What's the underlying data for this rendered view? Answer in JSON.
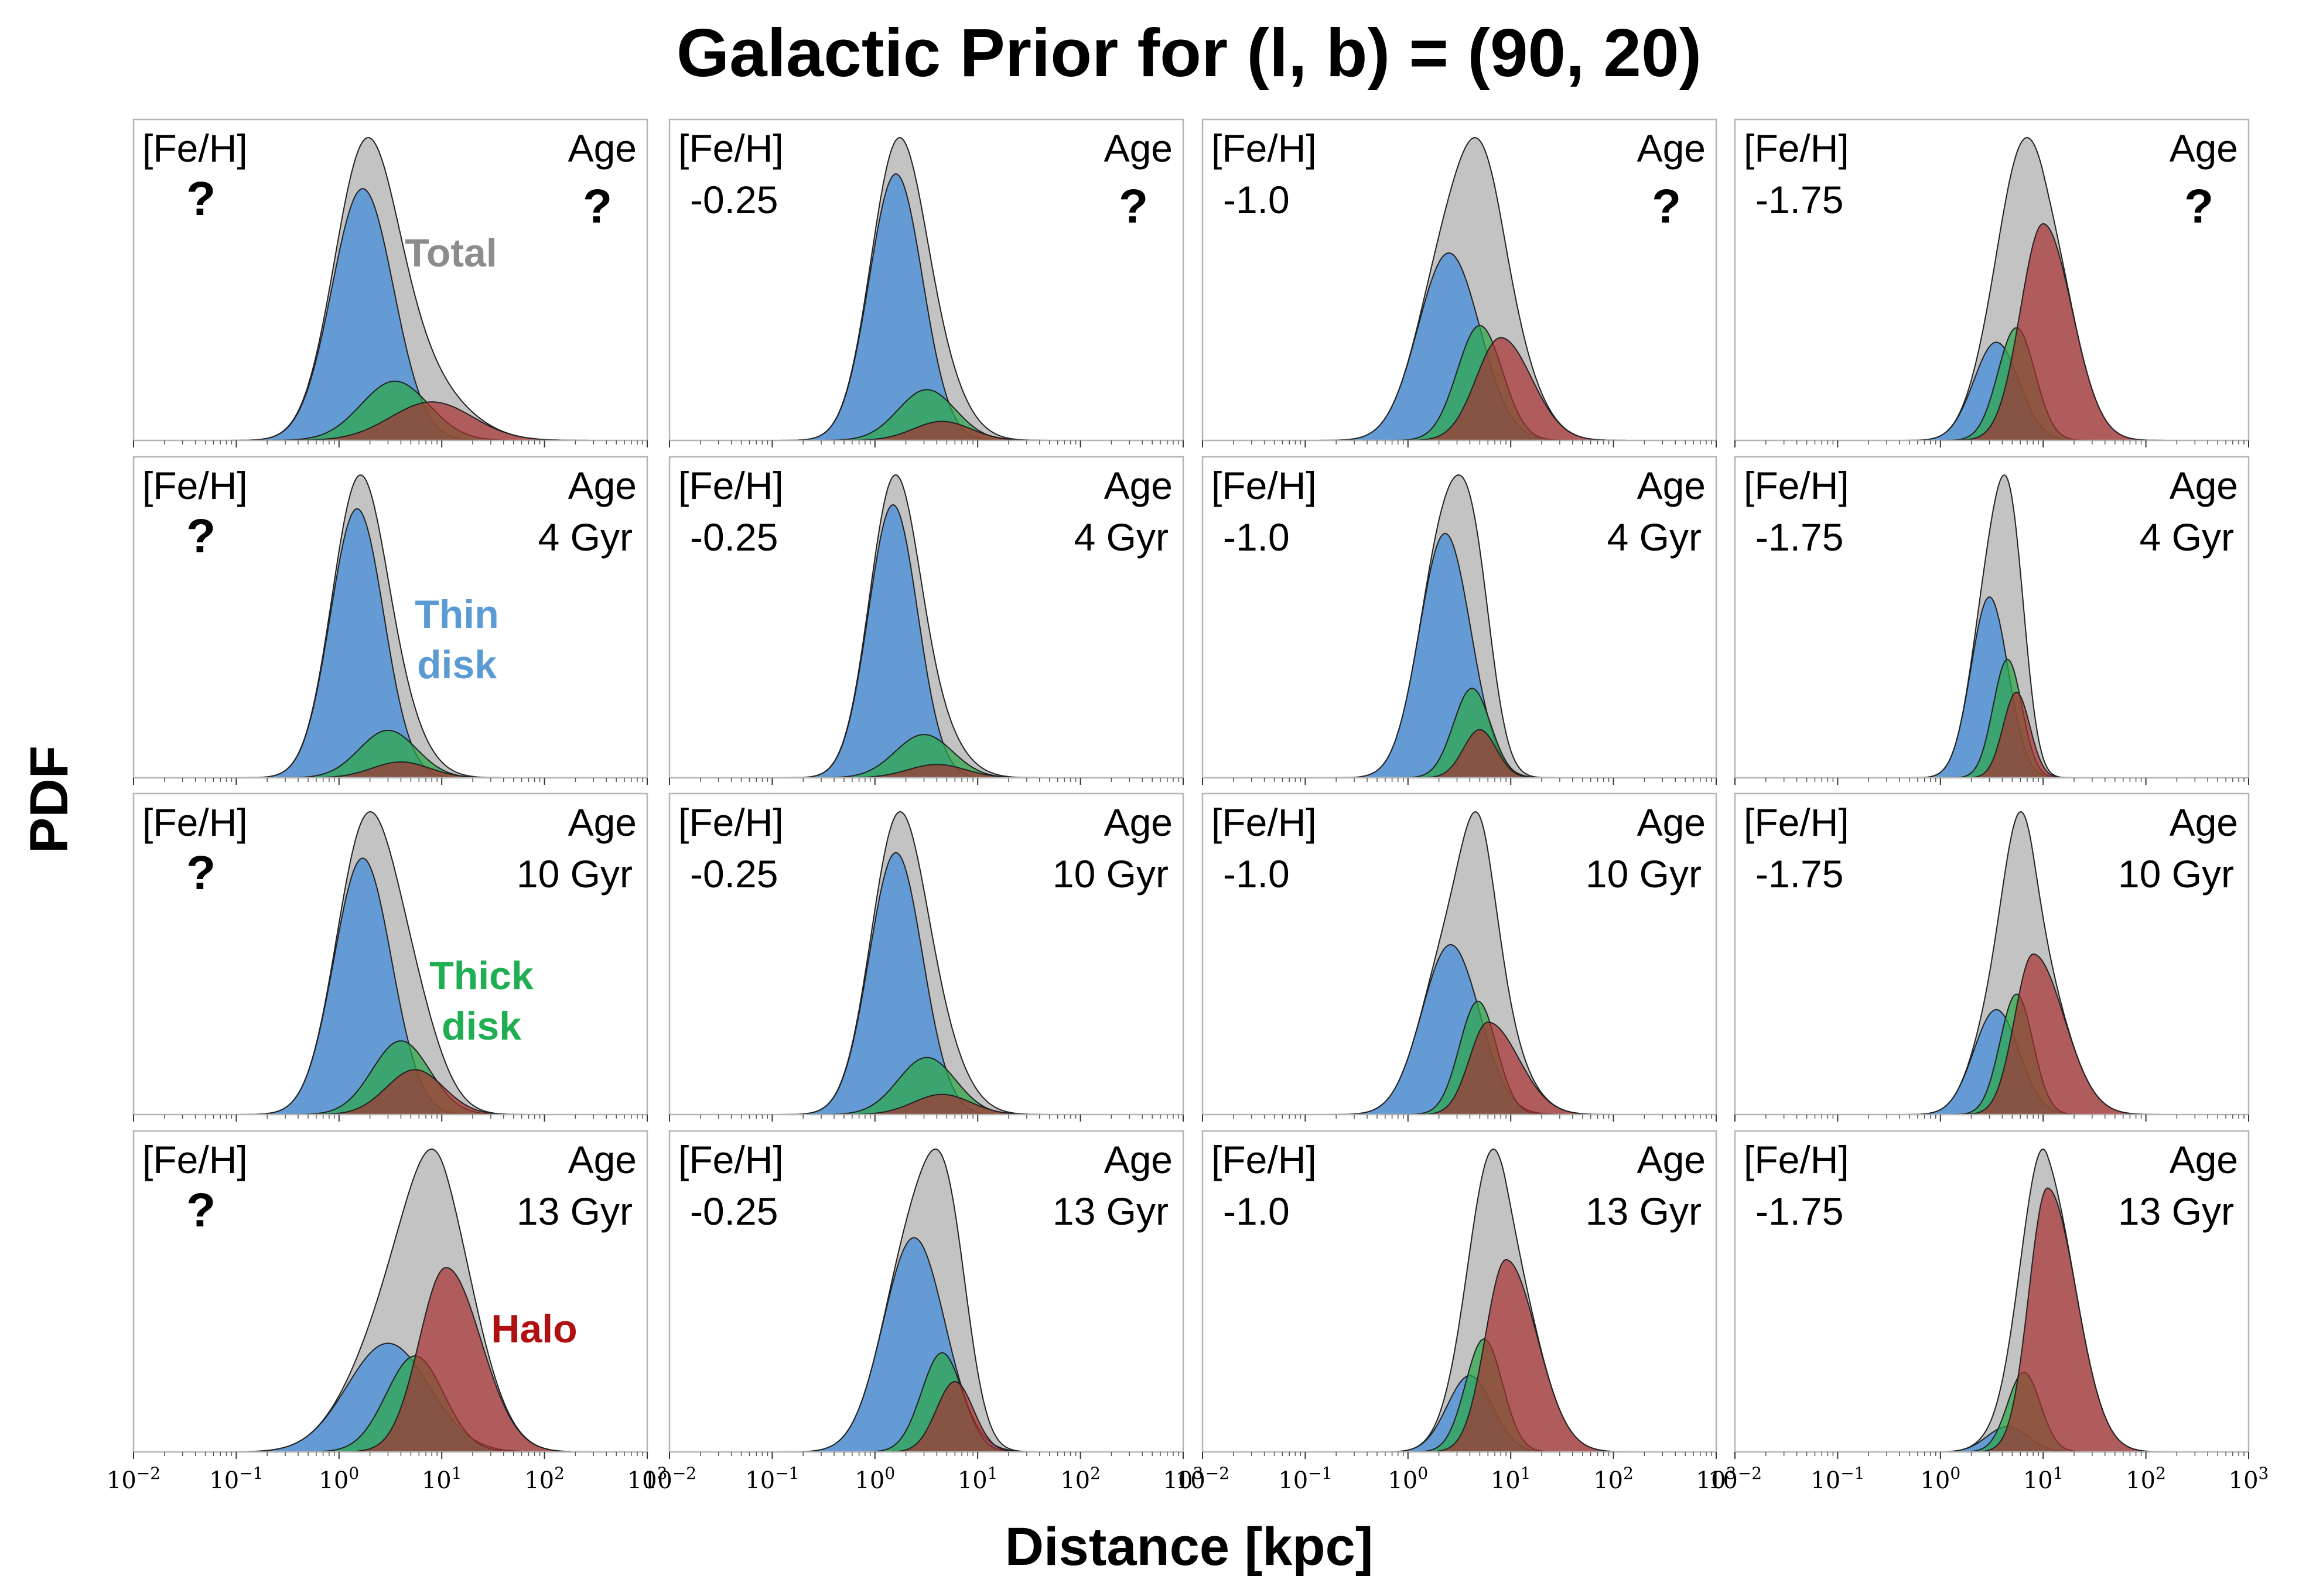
{
  "figure": {
    "title": "Galactic Prior for (l, b) = (90, 20)",
    "ylabel": "PDF",
    "xlabel": "Distance [kpc]"
  },
  "labels": {
    "feh_header": "[Fe/H]",
    "age_header": "Age",
    "unknown": "?"
  },
  "colors": {
    "total": "#c0c0c0",
    "thin": "#4a90d9",
    "thick": "#2ba84a",
    "halo": "#a83030",
    "total_text": "#8c8c8c",
    "thin_text": "#5b9bd5",
    "thick_text": "#1fae52",
    "halo_text": "#b01010"
  },
  "annotations": [
    {
      "text": [
        "Total"
      ],
      "row": 0,
      "col": 0,
      "color": "total_text"
    },
    {
      "text": [
        "Thin",
        "disk"
      ],
      "row": 1,
      "col": 0,
      "color": "thin_text"
    },
    {
      "text": [
        "Thick",
        "disk"
      ],
      "row": 2,
      "col": 0,
      "color": "thick_text"
    },
    {
      "text": [
        "Halo"
      ],
      "row": 3,
      "col": 0,
      "color": "halo_text"
    }
  ],
  "chart_data": {
    "type": "area",
    "layout": "4x4 grid of subplots (rows = stellar age, columns = metallicity)",
    "xscale": "log",
    "xlim": [
      0.01,
      1000
    ],
    "xticks": [
      0.01,
      0.1,
      1,
      10,
      100,
      1000
    ],
    "xtick_labels": [
      [
        "10",
        "−2"
      ],
      [
        "10",
        "−1"
      ],
      [
        "10",
        "0"
      ],
      [
        "10",
        "1"
      ],
      [
        "10",
        "2"
      ],
      [
        "10",
        "3"
      ]
    ],
    "xlabel": "Distance [kpc]",
    "ylabel": "PDF",
    "ylim_relative": [
      0,
      1.06
    ],
    "components": [
      "Total",
      "Thin disk",
      "Thick disk",
      "Halo"
    ],
    "component_model": "log-normal peaks: amp (relative to panel max), peak distance mu [kpc], width s_left / s_right in dex",
    "rows": [
      {
        "age": "?",
        "age_unknown": true
      },
      {
        "age": "4 Gyr",
        "age_unknown": false
      },
      {
        "age": "10 Gyr",
        "age_unknown": false
      },
      {
        "age": "13 Gyr",
        "age_unknown": false
      }
    ],
    "cols": [
      {
        "feh": "?",
        "feh_unknown": true
      },
      {
        "feh": "-0.25",
        "feh_unknown": false
      },
      {
        "feh": "-1.0",
        "feh_unknown": false
      },
      {
        "feh": "-1.75",
        "feh_unknown": false
      }
    ],
    "panels": [
      [
        {
          "thin": [
            0.85,
            1.7,
            0.3,
            0.3
          ],
          "thick": [
            0.2,
            3.5,
            0.33,
            0.33
          ],
          "halo": [
            0.13,
            8,
            0.4,
            0.4
          ]
        },
        {
          "thin": [
            0.84,
            1.6,
            0.26,
            0.26
          ],
          "thick": [
            0.16,
            3.2,
            0.28,
            0.28
          ],
          "halo": [
            0.06,
            4.5,
            0.28,
            0.28
          ]
        },
        {
          "thin": [
            0.62,
            2.5,
            0.3,
            0.3
          ],
          "thick": [
            0.38,
            5,
            0.22,
            0.22
          ],
          "halo": [
            0.34,
            8,
            0.24,
            0.3
          ]
        },
        {
          "thin": [
            0.34,
            3.5,
            0.22,
            0.22
          ],
          "thick": [
            0.39,
            5.5,
            0.18,
            0.18
          ],
          "halo": [
            0.75,
            10,
            0.22,
            0.28
          ]
        }
      ],
      [
        {
          "thin": [
            0.85,
            1.5,
            0.26,
            0.26
          ],
          "thick": [
            0.15,
            3,
            0.28,
            0.28
          ],
          "halo": [
            0.05,
            4,
            0.28,
            0.28
          ]
        },
        {
          "thin": [
            0.82,
            1.5,
            0.24,
            0.24
          ],
          "thick": [
            0.13,
            3,
            0.28,
            0.28
          ],
          "halo": [
            0.04,
            4,
            0.28,
            0.28
          ]
        },
        {
          "thin": [
            0.71,
            2.3,
            0.25,
            0.25
          ],
          "thick": [
            0.26,
            4.2,
            0.18,
            0.18
          ],
          "halo": [
            0.14,
            5,
            0.16,
            0.16
          ]
        },
        {
          "thin": [
            0.55,
            3,
            0.18,
            0.18
          ],
          "thick": [
            0.36,
            4.5,
            0.14,
            0.14
          ],
          "halo": [
            0.26,
            5.5,
            0.13,
            0.13
          ]
        }
      ],
      [
        {
          "thin": [
            0.8,
            1.7,
            0.28,
            0.28
          ],
          "thick": [
            0.23,
            4,
            0.28,
            0.28
          ],
          "halo": [
            0.14,
            5.5,
            0.28,
            0.28
          ]
        },
        {
          "thin": [
            0.78,
            1.6,
            0.26,
            0.26
          ],
          "thick": [
            0.17,
            3.2,
            0.28,
            0.28
          ],
          "halo": [
            0.06,
            4.5,
            0.28,
            0.28
          ]
        },
        {
          "thin": [
            0.57,
            2.6,
            0.28,
            0.28
          ],
          "thick": [
            0.38,
            4.8,
            0.18,
            0.18
          ],
          "halo": [
            0.31,
            6,
            0.18,
            0.3
          ]
        },
        {
          "thin": [
            0.34,
            3.5,
            0.22,
            0.22
          ],
          "thick": [
            0.39,
            5.5,
            0.16,
            0.16
          ],
          "halo": [
            0.52,
            8,
            0.18,
            0.3
          ]
        }
      ],
      [
        {
          "thin": [
            0.43,
            3,
            0.4,
            0.4
          ],
          "thick": [
            0.38,
            5.5,
            0.28,
            0.28
          ],
          "halo": [
            0.73,
            11,
            0.26,
            0.34
          ]
        },
        {
          "thin": [
            0.67,
            2.4,
            0.3,
            0.3
          ],
          "thick": [
            0.31,
            4.5,
            0.2,
            0.2
          ],
          "halo": [
            0.22,
            6,
            0.18,
            0.18
          ]
        },
        {
          "thin": [
            0.25,
            4,
            0.22,
            0.22
          ],
          "thick": [
            0.37,
            5.5,
            0.18,
            0.18
          ],
          "halo": [
            0.63,
            9,
            0.2,
            0.3
          ]
        },
        {
          "thin": [
            0.08,
            4.5,
            0.2,
            0.2
          ],
          "thick": [
            0.25,
            6.5,
            0.16,
            0.16
          ],
          "halo": [
            0.83,
            11,
            0.18,
            0.28
          ]
        }
      ]
    ]
  }
}
